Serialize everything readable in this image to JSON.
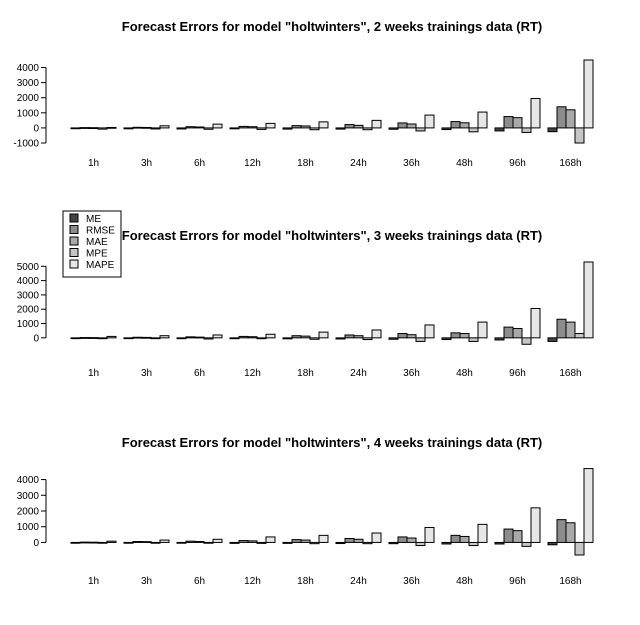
{
  "chart_data": [
    {
      "type": "bar",
      "title": "Forecast Errors for model \"holtwinters\", 2 weeks trainings data (RT)",
      "categories": [
        "1h",
        "3h",
        "6h",
        "12h",
        "18h",
        "24h",
        "36h",
        "48h",
        "96h",
        "168h"
      ],
      "ylim": [
        -1000,
        4500
      ],
      "yticks": [
        -1000,
        0,
        1000,
        2000,
        3000,
        4000
      ],
      "series": [
        {
          "name": "ME",
          "values": [
            -10,
            -60,
            -70,
            -60,
            -80,
            -80,
            -90,
            -110,
            -200,
            -250
          ]
        },
        {
          "name": "RMSE",
          "values": [
            20,
            40,
            80,
            100,
            150,
            220,
            330,
            420,
            750,
            1400
          ]
        },
        {
          "name": "MAE",
          "values": [
            15,
            30,
            60,
            80,
            130,
            170,
            260,
            340,
            680,
            1200
          ]
        },
        {
          "name": "MPE",
          "values": [
            -80,
            -70,
            -90,
            -100,
            -120,
            -120,
            -200,
            -260,
            -300,
            -1000
          ]
        },
        {
          "name": "MAPE",
          "values": [
            30,
            140,
            250,
            300,
            400,
            500,
            850,
            1050,
            1950,
            4500
          ]
        }
      ]
    },
    {
      "type": "bar",
      "title": "Forecast Errors for model \"holtwinters\", 3 weeks trainings data (RT)",
      "categories": [
        "1h",
        "3h",
        "6h",
        "12h",
        "18h",
        "24h",
        "36h",
        "48h",
        "96h",
        "168h"
      ],
      "ylim": [
        -500,
        5300
      ],
      "yticks": [
        0,
        1000,
        2000,
        3000,
        4000,
        5000
      ],
      "series": [
        {
          "name": "ME",
          "values": [
            -10,
            -40,
            -60,
            -60,
            -70,
            -80,
            -100,
            -120,
            -150,
            -250
          ]
        },
        {
          "name": "RMSE",
          "values": [
            20,
            40,
            70,
            100,
            150,
            200,
            300,
            350,
            750,
            1300
          ]
        },
        {
          "name": "MAE",
          "values": [
            15,
            30,
            50,
            80,
            120,
            150,
            220,
            300,
            650,
            1100
          ]
        },
        {
          "name": "MPE",
          "values": [
            -60,
            -50,
            -80,
            -60,
            -100,
            -120,
            -250,
            -250,
            -450,
            300
          ]
        },
        {
          "name": "MAPE",
          "values": [
            100,
            150,
            200,
            250,
            400,
            550,
            900,
            1100,
            2050,
            5300
          ]
        }
      ]
    },
    {
      "type": "bar",
      "title": "Forecast Errors for model \"holtwinters\", 4 weeks trainings data (RT)",
      "categories": [
        "1h",
        "3h",
        "6h",
        "12h",
        "18h",
        "24h",
        "36h",
        "48h",
        "96h",
        "168h"
      ],
      "ylim": [
        -800,
        4800
      ],
      "yticks": [
        0,
        1000,
        2000,
        3000,
        4000
      ],
      "series": [
        {
          "name": "ME",
          "values": [
            -10,
            -40,
            -50,
            -60,
            -60,
            -70,
            -80,
            -100,
            -100,
            -150
          ]
        },
        {
          "name": "RMSE",
          "values": [
            20,
            60,
            80,
            120,
            180,
            250,
            350,
            450,
            850,
            1450
          ]
        },
        {
          "name": "MAE",
          "values": [
            15,
            50,
            60,
            100,
            150,
            200,
            280,
            380,
            750,
            1250
          ]
        },
        {
          "name": "MPE",
          "values": [
            -30,
            -20,
            -30,
            -60,
            -80,
            -80,
            -200,
            -200,
            -250,
            -800
          ]
        },
        {
          "name": "MAPE",
          "values": [
            80,
            150,
            200,
            350,
            450,
            600,
            950,
            1150,
            2200,
            4700
          ]
        }
      ]
    }
  ],
  "legend": {
    "position": "left",
    "items": [
      "ME",
      "RMSE",
      "MAE",
      "MPE",
      "MAPE"
    ]
  },
  "colors": {
    "ME": "#444444",
    "RMSE": "#8c8c8c",
    "MAE": "#a9a9a9",
    "MPE": "#c6c6c6",
    "MAPE": "#e6e6e6"
  }
}
